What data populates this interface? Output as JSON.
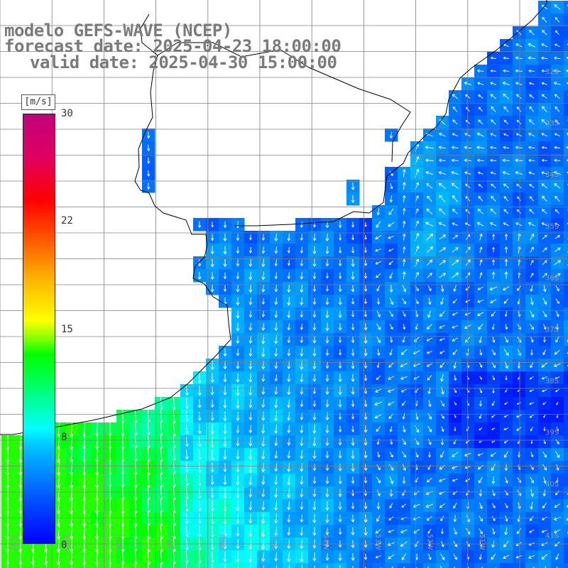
{
  "title": {
    "line1": "modelo GEFS-WAVE (NCEP)",
    "line2": "forecast date: 2025-04-23 18:00:00",
    "line3": "valid date: 2025-04-30 15:00:00"
  },
  "colorbar": {
    "unit": "[m/s]",
    "ticks": [
      "30",
      "22",
      "15",
      "8",
      "0"
    ],
    "colors": [
      "#0000ff",
      "#00c8ff",
      "#00ffff",
      "#00ff00",
      "#ffff00",
      "#ff0000",
      "#c0007a"
    ]
  },
  "map": {
    "land_color": "#ffffff",
    "ocean_base_color": "#0050f0",
    "grid_color": "#808080",
    "coastline_color": "#000000",
    "arrow_color": "#ffffff",
    "lat_labels": [
      "32S",
      "33S",
      "34S",
      "35S",
      "36S",
      "37S",
      "38S",
      "39S",
      "40S",
      "41S"
    ],
    "lon_labels": [
      "62W",
      "61W",
      "60W",
      "57W",
      "56W",
      "55W",
      "54W",
      "53W",
      "52W",
      "51W"
    ]
  }
}
